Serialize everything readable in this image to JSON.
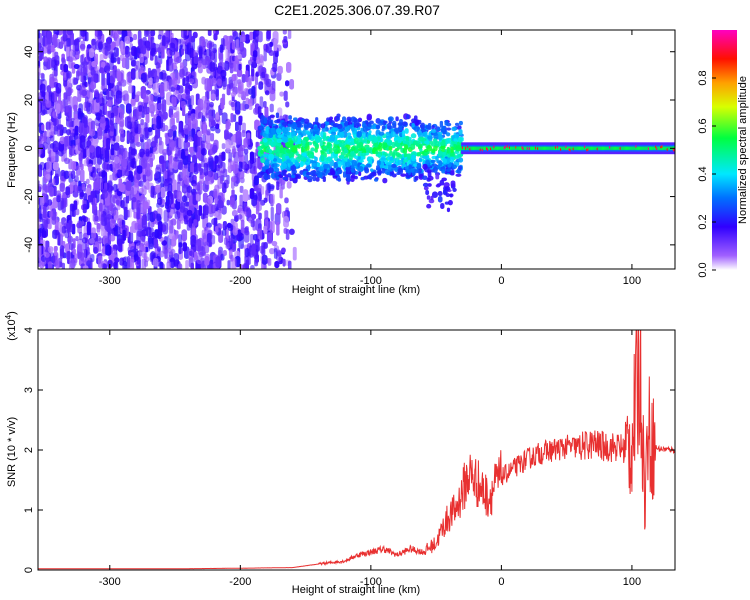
{
  "title": "C2E1.2025.306.07.39.R07",
  "chart_data": [
    {
      "type": "heatmap",
      "xlabel": "Height of straight line (km)",
      "ylabel": "Frequency (Hz)",
      "xlim": [
        -355,
        133
      ],
      "ylim": [
        -50,
        49
      ],
      "xticks": [
        "-300",
        "-200",
        "-100",
        "0",
        "100"
      ],
      "xtick_values": [
        -300,
        -200,
        -100,
        0,
        100
      ],
      "yticks": [
        "-40",
        "-20",
        "0",
        "20",
        "40"
      ],
      "ytick_values": [
        -40,
        -20,
        0,
        20,
        40
      ],
      "colorbar": {
        "label": "Normalized spectral amplitude",
        "range": [
          0,
          1
        ],
        "ticks": [
          "0.0",
          "0.2",
          "0.4",
          "0.6",
          "0.8"
        ],
        "tick_values": [
          0.0,
          0.2,
          0.4,
          0.6,
          0.8
        ],
        "colors": [
          "#ffffff",
          "#8000ff",
          "#0000ff",
          "#00ffff",
          "#00ff00",
          "#ffff00",
          "#ff0000",
          "#ff00ff"
        ]
      },
      "regions": [
        {
          "x": [
            -355,
            -160
          ],
          "freq": [
            -50,
            49
          ],
          "amplitude": 0.1,
          "pattern": "broadband noise"
        },
        {
          "x": [
            -185,
            -30
          ],
          "freq": [
            -20,
            15
          ],
          "amplitude": 0.4,
          "pattern": "spread signal"
        },
        {
          "x": [
            -30,
            133
          ],
          "freq": [
            -2,
            2
          ],
          "amplitude": 0.85,
          "pattern": "narrow carrier near 0 Hz"
        }
      ]
    },
    {
      "type": "line",
      "xlabel": "Height of straight line (km)",
      "ylabel": "SNR (10 * v/v)",
      "yscale_label": "(x10",
      "yscale_exp": "4",
      "yscale_close": ")",
      "xlim": [
        -355,
        133
      ],
      "ylim": [
        0,
        4
      ],
      "xticks": [
        "-300",
        "-200",
        "-100",
        "0",
        "100"
      ],
      "xtick_values": [
        -300,
        -200,
        -100,
        0,
        100
      ],
      "yticks": [
        "0",
        "1",
        "2",
        "3",
        "4"
      ],
      "ytick_values": [
        0,
        1,
        2,
        3,
        4
      ],
      "color": "#e83030",
      "x": [
        -355,
        -300,
        -250,
        -200,
        -160,
        -140,
        -120,
        -110,
        -100,
        -90,
        -80,
        -70,
        -60,
        -50,
        -45,
        -40,
        -35,
        -30,
        -25,
        -20,
        -15,
        -10,
        -5,
        0,
        10,
        20,
        30,
        40,
        50,
        60,
        70,
        80,
        90,
        95,
        100,
        103,
        106,
        108,
        110,
        112,
        115,
        120,
        133
      ],
      "y": [
        0.02,
        0.02,
        0.02,
        0.03,
        0.04,
        0.1,
        0.15,
        0.25,
        0.3,
        0.35,
        0.25,
        0.35,
        0.3,
        0.45,
        0.7,
        0.9,
        1.0,
        1.3,
        1.6,
        1.5,
        1.35,
        1.2,
        1.4,
        1.55,
        1.7,
        1.85,
        1.95,
        2.0,
        2.05,
        2.05,
        2.1,
        2.05,
        2.05,
        2.0,
        2.1,
        2.8,
        3.5,
        2.5,
        1.0,
        2.4,
        2.1,
        2.02,
        2.0
      ]
    }
  ]
}
